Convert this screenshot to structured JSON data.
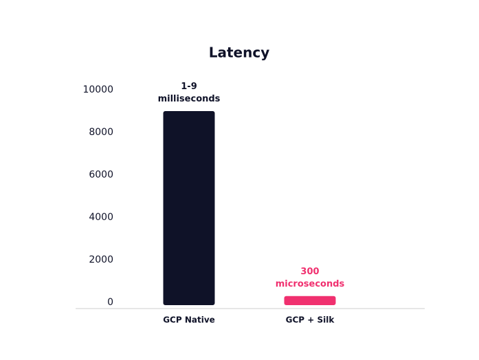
{
  "chart_data": {
    "type": "bar",
    "title": "Latency",
    "categories": [
      "GCP Native",
      "GCP + Silk"
    ],
    "values": [
      9000,
      300
    ],
    "value_labels": [
      "1-9\nmilliseconds",
      "300\nmicroseconds"
    ],
    "colors": [
      "#0f1228",
      "#f0306f"
    ],
    "ylim": [
      0,
      10000
    ],
    "yticks": [
      0,
      2000,
      4000,
      6000,
      8000,
      10000
    ],
    "grid": false
  }
}
